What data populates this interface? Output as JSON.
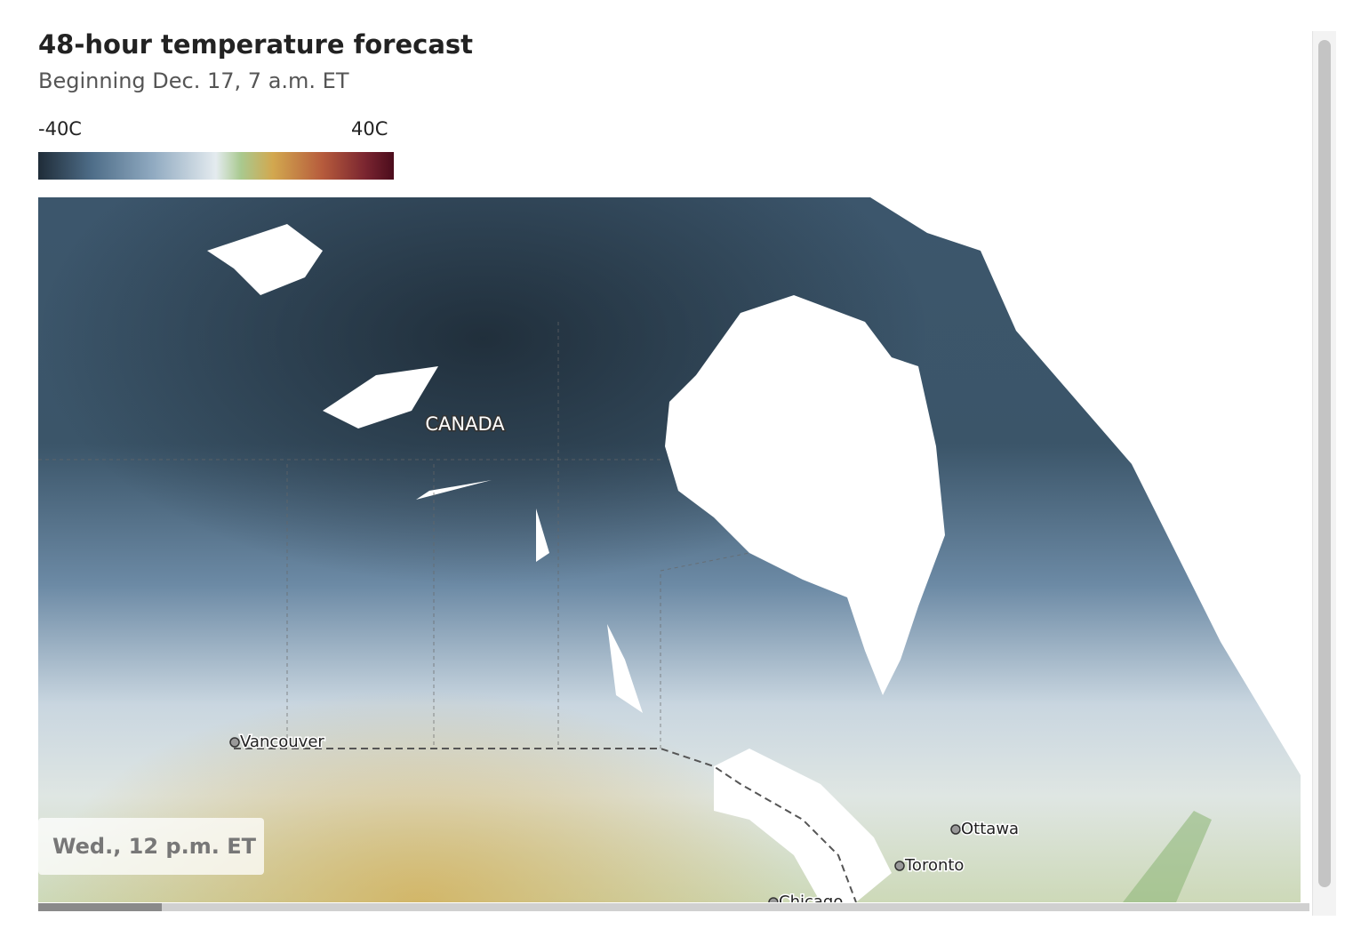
{
  "header": {
    "title": "48-hour temperature forecast",
    "subtitle": "Beginning Dec. 17, 7 a.m. ET"
  },
  "legend": {
    "min_label": "-40C",
    "max_label": "40C"
  },
  "map": {
    "region_label": "CANADA",
    "cities": [
      {
        "name": "Vancouver"
      },
      {
        "name": "Ottawa"
      },
      {
        "name": "Toronto"
      },
      {
        "name": "Chicago"
      }
    ],
    "time_label": "Wed., 12 p.m. ET"
  }
}
